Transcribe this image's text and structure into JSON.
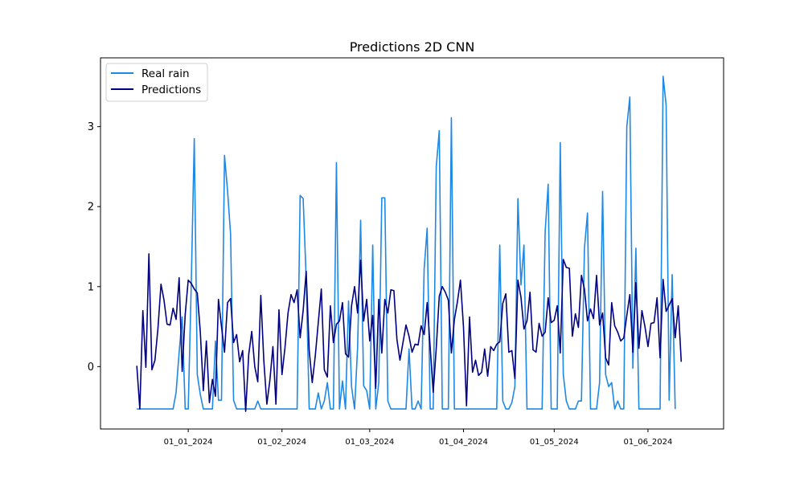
{
  "chart_data": {
    "type": "line",
    "title": "Predictions 2D CNN",
    "xlabel": "",
    "ylabel": "",
    "ylim": [
      -0.78,
      3.86
    ],
    "xlim": [
      "2023-12-03",
      "2024-06-26"
    ],
    "yticks": [
      0,
      1,
      2,
      3
    ],
    "xticks": [
      {
        "date": "2024-01-01",
        "label": "01_01_2024"
      },
      {
        "date": "2024-02-01",
        "label": "01_02_2024"
      },
      {
        "date": "2024-03-01",
        "label": "01_03_2024"
      },
      {
        "date": "2024-04-01",
        "label": "01_04_2024"
      },
      {
        "date": "2024-05-01",
        "label": "01_05_2024"
      },
      {
        "date": "2024-06-01",
        "label": "01_06_2024"
      }
    ],
    "start_date": "2023-12-15",
    "legend": {
      "position": "top-left",
      "entries": [
        "Real rain",
        "Predictions"
      ]
    },
    "grid": false,
    "series": [
      {
        "name": "Real rain",
        "color": "#1e88e5",
        "values": [
          -0.53,
          -0.53,
          -0.53,
          -0.53,
          -0.53,
          -0.53,
          -0.53,
          -0.53,
          -0.53,
          -0.53,
          -0.53,
          -0.53,
          -0.53,
          -0.32,
          0.18,
          0.62,
          -0.53,
          -0.53,
          1.02,
          2.85,
          -0.1,
          -0.35,
          -0.53,
          -0.53,
          -0.53,
          -0.53,
          0.32,
          -0.42,
          -0.42,
          2.64,
          2.2,
          1.66,
          -0.42,
          -0.53,
          -0.53,
          -0.53,
          -0.53,
          -0.53,
          -0.53,
          -0.53,
          -0.43,
          -0.53,
          -0.53,
          -0.53,
          -0.53,
          -0.53,
          -0.53,
          -0.53,
          -0.53,
          -0.53,
          -0.53,
          -0.53,
          -0.53,
          -0.53,
          2.14,
          2.1,
          1.1,
          -0.53,
          -0.53,
          -0.53,
          -0.33,
          -0.53,
          -0.43,
          -0.2,
          -0.53,
          -0.53,
          2.55,
          -0.53,
          -0.18,
          -0.53,
          0.82,
          -0.25,
          -0.53,
          0.24,
          1.83,
          -0.24,
          -0.3,
          -0.53,
          1.52,
          -0.53,
          -0.2,
          2.11,
          2.11,
          -0.43,
          -0.53,
          -0.53,
          -0.53,
          -0.53,
          -0.53,
          -0.53,
          0.22,
          -0.53,
          -0.53,
          -0.43,
          -0.53,
          1.22,
          1.73,
          -0.53,
          -0.53,
          2.5,
          2.95,
          -0.53,
          -0.53,
          -0.53,
          3.11,
          -0.53,
          -0.53,
          -0.53,
          -0.53,
          -0.53,
          -0.53,
          -0.53,
          -0.53,
          -0.53,
          -0.53,
          -0.53,
          -0.53,
          -0.53,
          -0.53,
          -0.53,
          1.52,
          -0.43,
          -0.53,
          -0.53,
          -0.45,
          -0.25,
          2.1,
          1.02,
          1.52,
          -0.53,
          -0.53,
          -0.53,
          -0.53,
          -0.53,
          -0.53,
          1.68,
          2.28,
          -0.53,
          -0.53,
          -0.53,
          2.8,
          -0.1,
          -0.43,
          -0.53,
          -0.53,
          -0.53,
          -0.43,
          -0.43,
          1.48,
          1.92,
          -0.53,
          -0.53,
          -0.53,
          -0.2,
          2.19,
          -0.1,
          -0.25,
          -0.2,
          -0.53,
          -0.43,
          -0.53,
          -0.53,
          3.0,
          3.37,
          -0.02,
          1.48,
          -0.53,
          -0.53,
          -0.53,
          -0.53,
          -0.53,
          -0.53,
          -0.53,
          -0.53,
          3.63,
          3.27,
          -0.42,
          1.15,
          -0.53
        ]
      },
      {
        "name": "Predictions",
        "color": "#000080",
        "values": [
          0.01,
          -0.53,
          0.7,
          -0.01,
          1.41,
          -0.04,
          0.08,
          0.48,
          1.03,
          0.83,
          0.53,
          0.52,
          0.73,
          0.59,
          1.11,
          -0.06,
          0.65,
          1.08,
          1.04,
          0.97,
          0.92,
          0.43,
          -0.3,
          0.32,
          -0.45,
          -0.16,
          -0.37,
          0.84,
          0.5,
          0.18,
          0.8,
          0.85,
          0.3,
          0.4,
          0.06,
          0.2,
          -0.56,
          0.15,
          0.44,
          0.0,
          -0.19,
          0.89,
          0.07,
          -0.47,
          -0.17,
          0.25,
          -0.47,
          0.71,
          -0.1,
          0.24,
          0.67,
          0.9,
          0.8,
          0.96,
          0.36,
          0.7,
          1.19,
          0.2,
          -0.2,
          0.13,
          0.55,
          0.97,
          -0.04,
          -0.13,
          0.76,
          0.3,
          0.53,
          0.57,
          0.8,
          0.16,
          0.12,
          0.76,
          1.0,
          0.67,
          1.33,
          0.57,
          0.84,
          0.32,
          0.64,
          -0.27,
          0.84,
          0.17,
          0.84,
          0.67,
          0.96,
          0.95,
          0.34,
          0.08,
          0.3,
          0.52,
          0.38,
          0.18,
          0.28,
          0.27,
          0.51,
          0.4,
          0.8,
          0.24,
          -0.32,
          0.23,
          0.88,
          1.0,
          0.93,
          0.83,
          0.17,
          0.59,
          0.81,
          1.08,
          0.5,
          -0.49,
          0.62,
          -0.07,
          0.08,
          -0.11,
          -0.07,
          0.22,
          -0.12,
          0.25,
          0.2,
          0.28,
          0.31,
          0.79,
          0.91,
          0.18,
          0.2,
          -0.15,
          1.08,
          0.87,
          0.47,
          0.57,
          0.93,
          0.21,
          0.18,
          0.54,
          0.38,
          0.43,
          0.86,
          0.55,
          0.58,
          0.76,
          0.17,
          1.34,
          1.24,
          1.23,
          0.38,
          0.66,
          0.49,
          1.14,
          0.97,
          0.57,
          0.72,
          0.6,
          1.14,
          0.52,
          0.67,
          0.11,
          0.02,
          0.8,
          0.51,
          0.43,
          0.32,
          0.36,
          0.64,
          0.9,
          0.18,
          1.05,
          0.23,
          0.7,
          0.5,
          0.25,
          0.54,
          0.55,
          0.86,
          0.11,
          1.09,
          0.69,
          0.77,
          0.85,
          0.36,
          0.76,
          0.06
        ]
      }
    ]
  }
}
